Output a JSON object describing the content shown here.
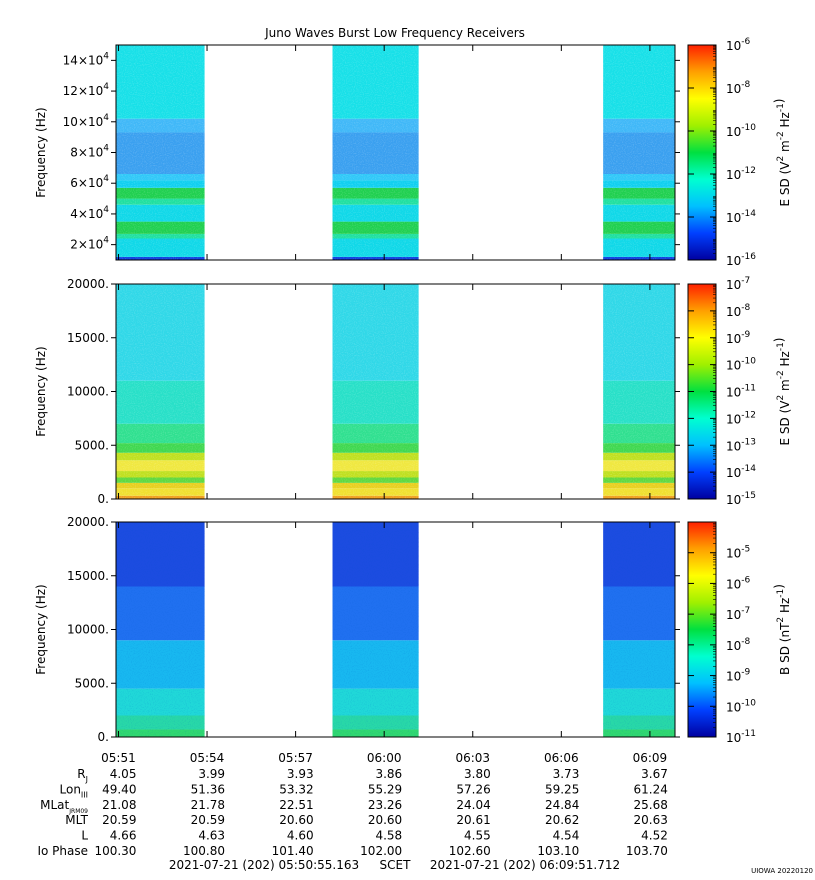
{
  "title": "Juno Waves Burst Low Frequency Receivers",
  "footer": {
    "start": "2021-07-21 (202) 05:50:55.163",
    "scet": "SCET",
    "end": "2021-07-21 (202) 06:09:51.712",
    "credit": "UIOWA 20220120"
  },
  "colors": {
    "bar": [
      "#0000a0",
      "#0040ff",
      "#00c0ff",
      "#00ffd0",
      "#00e040",
      "#a0f000",
      "#ffff00",
      "#ffa000",
      "#ff2000"
    ]
  },
  "chart_data": [
    {
      "type": "heatmap",
      "ylabel": "Frequency (Hz)",
      "ylim": [
        10000,
        150000
      ],
      "yticks": [
        {
          "value": 20000,
          "mant": "2×10",
          "exp": "4"
        },
        {
          "value": 40000,
          "mant": "4×10",
          "exp": "4"
        },
        {
          "value": 60000,
          "mant": "6×10",
          "exp": "4"
        },
        {
          "value": 80000,
          "mant": "8×10",
          "exp": "4"
        },
        {
          "value": 100000,
          "mant": "10×10",
          "exp": "4"
        },
        {
          "value": 120000,
          "mant": "12×10",
          "exp": "4"
        },
        {
          "value": 140000,
          "mant": "14×10",
          "exp": "4"
        }
      ],
      "data_intervals": [
        [
          "05:50:55",
          "05:53:55"
        ],
        [
          "05:58:15",
          "06:01:10"
        ],
        [
          "06:07:25",
          "06:09:51"
        ]
      ],
      "bands": [
        {
          "from": 10000,
          "to": 12000,
          "color": "#1040e0"
        },
        {
          "from": 12000,
          "to": 24000,
          "color": "#10d8e8"
        },
        {
          "from": 24000,
          "to": 27000,
          "color": "#20e0a0"
        },
        {
          "from": 27000,
          "to": 35000,
          "color": "#20d050"
        },
        {
          "from": 35000,
          "to": 46000,
          "color": "#10d8e8"
        },
        {
          "from": 46000,
          "to": 50000,
          "color": "#20e0a0"
        },
        {
          "from": 50000,
          "to": 57000,
          "color": "#20d050"
        },
        {
          "from": 57000,
          "to": 62000,
          "color": "#10d0f0"
        },
        {
          "from": 62000,
          "to": 66000,
          "color": "#30c8f8"
        },
        {
          "from": 66000,
          "to": 93000,
          "color": "#3aa0f0"
        },
        {
          "from": 93000,
          "to": 102000,
          "color": "#40b8f8"
        },
        {
          "from": 102000,
          "to": 150000,
          "color": "#18e0e8"
        }
      ],
      "colorbar": {
        "label": "E SD (V",
        "label_unit": "2 m-2 Hz-1",
        "scale": "log",
        "range": [
          -16,
          -6
        ],
        "ticks": [
          {
            "exp": "-6",
            "pos": -6
          },
          {
            "exp": "-8",
            "pos": -8
          },
          {
            "exp": "-10",
            "pos": -10
          },
          {
            "exp": "-12",
            "pos": -12
          },
          {
            "exp": "-14",
            "pos": -14
          },
          {
            "exp": "-16",
            "pos": -16
          }
        ]
      }
    },
    {
      "type": "heatmap",
      "ylabel": "Frequency (Hz)",
      "ylim": [
        0,
        20000
      ],
      "yticks": [
        {
          "value": 0,
          "label": "0."
        },
        {
          "value": 5000,
          "label": "5000."
        },
        {
          "value": 10000,
          "label": "10000."
        },
        {
          "value": 15000,
          "label": "15000."
        },
        {
          "value": 20000,
          "label": "20000."
        }
      ],
      "data_intervals": [
        [
          "05:50:55",
          "05:53:55"
        ],
        [
          "05:58:15",
          "06:01:10"
        ],
        [
          "06:07:25",
          "06:09:51"
        ]
      ],
      "bands": [
        {
          "from": 0,
          "to": 300,
          "color": "#f0a020"
        },
        {
          "from": 300,
          "to": 1000,
          "color": "#f0e030"
        },
        {
          "from": 1000,
          "to": 1500,
          "color": "#e8d020"
        },
        {
          "from": 1500,
          "to": 2000,
          "color": "#60d840"
        },
        {
          "from": 2000,
          "to": 2600,
          "color": "#c0e020"
        },
        {
          "from": 2600,
          "to": 3600,
          "color": "#f0e840"
        },
        {
          "from": 3600,
          "to": 4300,
          "color": "#c0e020"
        },
        {
          "from": 4300,
          "to": 5200,
          "color": "#40d850"
        },
        {
          "from": 5200,
          "to": 7000,
          "color": "#30e090"
        },
        {
          "from": 7000,
          "to": 11000,
          "color": "#28e0c8"
        },
        {
          "from": 11000,
          "to": 20000,
          "color": "#30d8e8"
        }
      ],
      "colorbar": {
        "label": "E SD (V",
        "label_unit": "2 m-2 Hz-1",
        "scale": "log",
        "range": [
          -15,
          -7
        ],
        "ticks": [
          {
            "exp": "-7",
            "pos": -7
          },
          {
            "exp": "-8",
            "pos": -8
          },
          {
            "exp": "-9",
            "pos": -9
          },
          {
            "exp": "-10",
            "pos": -10
          },
          {
            "exp": "-11",
            "pos": -11
          },
          {
            "exp": "-12",
            "pos": -12
          },
          {
            "exp": "-13",
            "pos": -13
          },
          {
            "exp": "-14",
            "pos": -14
          },
          {
            "exp": "-15",
            "pos": -15
          }
        ]
      }
    },
    {
      "type": "heatmap",
      "ylabel": "Frequency (Hz)",
      "ylim": [
        0,
        20000
      ],
      "yticks": [
        {
          "value": 0,
          "label": "0."
        },
        {
          "value": 5000,
          "label": "5000."
        },
        {
          "value": 10000,
          "label": "10000."
        },
        {
          "value": 15000,
          "label": "15000."
        },
        {
          "value": 20000,
          "label": "20000."
        }
      ],
      "data_intervals": [
        [
          "05:50:55",
          "05:53:55"
        ],
        [
          "05:58:15",
          "06:01:10"
        ],
        [
          "06:07:25",
          "06:09:51"
        ]
      ],
      "bands": [
        {
          "from": 0,
          "to": 700,
          "color": "#30d870"
        },
        {
          "from": 700,
          "to": 2000,
          "color": "#28d8a8"
        },
        {
          "from": 2000,
          "to": 4500,
          "color": "#20d8d8"
        },
        {
          "from": 4500,
          "to": 9000,
          "color": "#18b8f0"
        },
        {
          "from": 9000,
          "to": 14000,
          "color": "#2070f0"
        },
        {
          "from": 14000,
          "to": 20000,
          "color": "#1c4ce0"
        }
      ],
      "colorbar": {
        "label": "B SD (nT",
        "label_unit": "2 Hz-1",
        "scale": "log",
        "range": [
          -11,
          -4
        ],
        "ticks": [
          {
            "exp": "-5",
            "pos": -5
          },
          {
            "exp": "-6",
            "pos": -6
          },
          {
            "exp": "-7",
            "pos": -7
          },
          {
            "exp": "-8",
            "pos": -8
          },
          {
            "exp": "-9",
            "pos": -9
          },
          {
            "exp": "-10",
            "pos": -10
          },
          {
            "exp": "-11",
            "pos": -11
          }
        ]
      }
    }
  ],
  "time_axis": {
    "start": "05:50:55",
    "end": "06:09:51",
    "ticks": [
      {
        "t": "05:51:00",
        "label": "05:51"
      },
      {
        "t": "05:54:00",
        "label": "05:54"
      },
      {
        "t": "05:57:00",
        "label": "05:57"
      },
      {
        "t": "06:00:00",
        "label": "06:00"
      },
      {
        "t": "06:03:00",
        "label": "06:03"
      },
      {
        "t": "06:06:00",
        "label": "06:06"
      },
      {
        "t": "06:09:00",
        "label": "06:09"
      }
    ]
  },
  "ephemeris": [
    {
      "label": "R",
      "sub": "J",
      "values": [
        "4.05",
        "3.99",
        "3.93",
        "3.86",
        "3.80",
        "3.73",
        "3.67"
      ]
    },
    {
      "label": "Lon",
      "sub": "III",
      "values": [
        "49.40",
        "51.36",
        "53.32",
        "55.29",
        "57.26",
        "59.25",
        "61.24"
      ]
    },
    {
      "label": "MLat",
      "sub": "JRM09",
      "values": [
        "21.08",
        "21.78",
        "22.51",
        "23.26",
        "24.04",
        "24.84",
        "25.68"
      ]
    },
    {
      "label": "MLT",
      "sub": "",
      "values": [
        "20.59",
        "20.59",
        "20.60",
        "20.60",
        "20.61",
        "20.62",
        "20.63"
      ]
    },
    {
      "label": "L",
      "sub": "",
      "values": [
        "4.66",
        "4.63",
        "4.60",
        "4.58",
        "4.55",
        "4.54",
        "4.52"
      ]
    },
    {
      "label": "Io Phase",
      "sub": "",
      "values": [
        "100.30",
        "100.80",
        "101.40",
        "102.00",
        "102.60",
        "103.10",
        "103.70"
      ]
    }
  ]
}
